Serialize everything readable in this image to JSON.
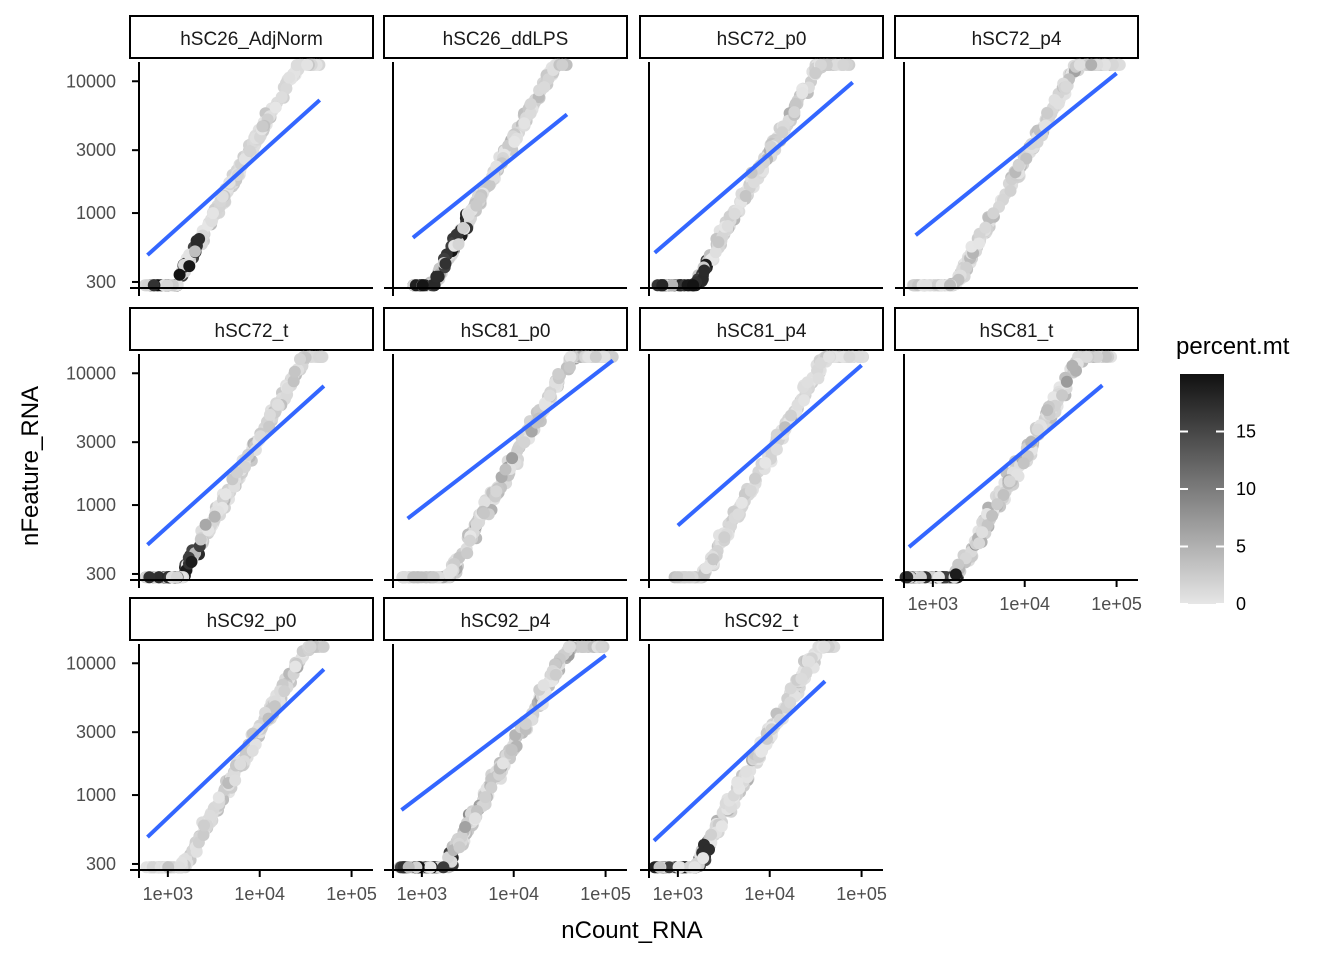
{
  "chart_data": {
    "type": "scatter",
    "subtype": "faceted scatter with linear fit, log-log axes",
    "xlabel": "nCount_RNA",
    "ylabel": "nFeature_RNA",
    "x_scale": "log10",
    "y_scale": "log10",
    "xlim": [
      450,
      140000
    ],
    "ylim": [
      270,
      14000
    ],
    "x_ticks": [
      1000,
      10000,
      100000
    ],
    "x_tick_labels": [
      "1e+03",
      "1e+04",
      "1e+05"
    ],
    "y_ticks": [
      300,
      1000,
      3000,
      10000
    ],
    "y_tick_labels": [
      "300",
      "1000",
      "3000",
      "10000"
    ],
    "grid": false,
    "fit_line_color": "#3366ff",
    "colorbar": {
      "title": "percent.mt",
      "min": 0,
      "max": 20,
      "ticks": [
        0,
        5,
        10,
        15
      ],
      "tick_labels": [
        "0",
        "5",
        "10",
        "15"
      ],
      "low_color": "#e6e6e6",
      "high_color": "#111111",
      "placement": "right"
    },
    "facets": [
      {
        "name": "hSC26_AdjNorm",
        "x_range": [
          550,
          45000
        ],
        "fit": [
          [
            600,
            480
          ],
          [
            45000,
            7200
          ]
        ],
        "ratio_mean": 0.22,
        "spread": 0.05,
        "mt_level": 0.3,
        "dark_low": true
      },
      {
        "name": "hSC26_ddLPS",
        "x_range": [
          800,
          38000
        ],
        "fit": [
          [
            800,
            650
          ],
          [
            38000,
            5600
          ]
        ],
        "ratio_mean": 0.2,
        "spread": 0.05,
        "mt_level": 0.35,
        "dark_low": true
      },
      {
        "name": "hSC72_p0",
        "x_range": [
          560,
          80000
        ],
        "fit": [
          [
            560,
            500
          ],
          [
            80000,
            9800
          ]
        ],
        "ratio_mean": 0.16,
        "spread": 0.06,
        "mt_level": 0.4,
        "dark_low": true
      },
      {
        "name": "hSC72_p4",
        "x_range": [
          600,
          110000
        ],
        "fit": [
          [
            650,
            680
          ],
          [
            100000,
            11500
          ]
        ],
        "ratio_mean": 0.14,
        "spread": 0.06,
        "mt_level": 0.4,
        "dark_low": false
      },
      {
        "name": "hSC72_t",
        "x_range": [
          560,
          50000
        ],
        "fit": [
          [
            600,
            500
          ],
          [
            50000,
            8000
          ]
        ],
        "ratio_mean": 0.18,
        "spread": 0.06,
        "mt_level": 0.35,
        "dark_low": true
      },
      {
        "name": "hSC81_p0",
        "x_range": [
          600,
          120000
        ],
        "fit": [
          [
            700,
            790
          ],
          [
            120000,
            12500
          ]
        ],
        "ratio_mean": 0.12,
        "spread": 0.07,
        "mt_level": 0.45,
        "dark_low": false
      },
      {
        "name": "hSC81_p4",
        "x_range": [
          900,
          110000
        ],
        "fit": [
          [
            1000,
            700
          ],
          [
            100000,
            11500
          ]
        ],
        "ratio_mean": 0.13,
        "spread": 0.06,
        "mt_level": 0.3,
        "dark_low": false
      },
      {
        "name": "hSC81_t",
        "x_range": [
          500,
          90000
        ],
        "fit": [
          [
            550,
            480
          ],
          [
            70000,
            8100
          ]
        ],
        "ratio_mean": 0.13,
        "spread": 0.08,
        "mt_level": 0.45,
        "dark_low": true
      },
      {
        "name": "hSC92_p0",
        "x_range": [
          580,
          50000
        ],
        "fit": [
          [
            600,
            480
          ],
          [
            50000,
            9000
          ]
        ],
        "ratio_mean": 0.17,
        "spread": 0.06,
        "mt_level": 0.35,
        "dark_low": false
      },
      {
        "name": "hSC92_p4",
        "x_range": [
          560,
          100000
        ],
        "fit": [
          [
            600,
            770
          ],
          [
            100000,
            11500
          ]
        ],
        "ratio_mean": 0.13,
        "spread": 0.07,
        "mt_level": 0.5,
        "dark_low": true
      },
      {
        "name": "hSC92_t",
        "x_range": [
          550,
          60000
        ],
        "fit": [
          [
            550,
            450
          ],
          [
            40000,
            7300
          ]
        ],
        "ratio_mean": 0.16,
        "spread": 0.07,
        "mt_level": 0.35,
        "dark_low": true
      }
    ]
  }
}
